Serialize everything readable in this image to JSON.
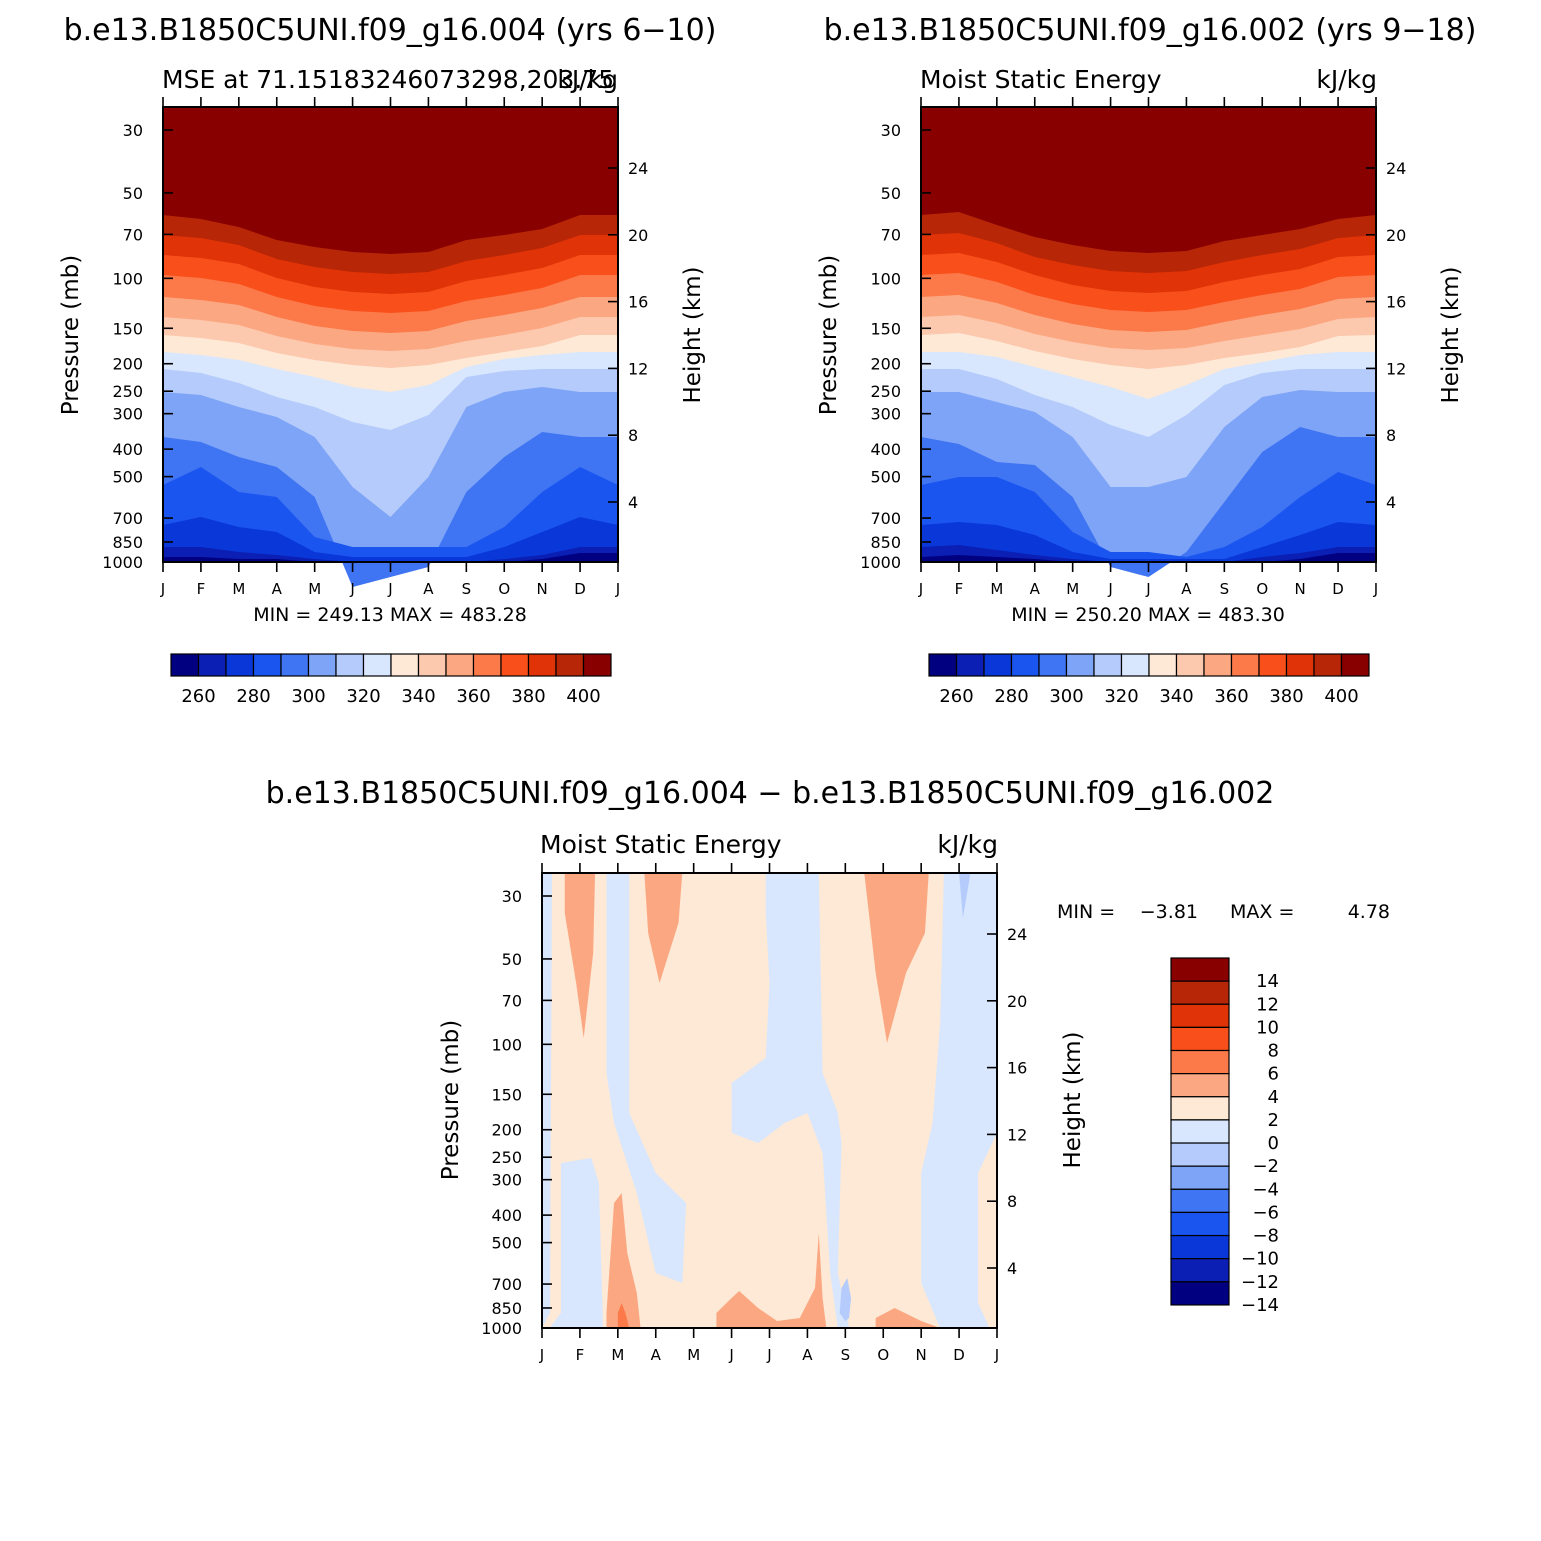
{
  "chart_data": [
    {
      "type": "contour",
      "panel": "top-left",
      "case_title": "b.e13.B1850C5UNI.f09_g16.004 (yrs 6−10)",
      "subtitle_left": "MSE at 71.15183246073298,203.75",
      "subtitle_right": "kJ/kg",
      "ylabel": "Pressure (mb)",
      "ylabel_right": "Height (km)",
      "pressure_ticks": [
        "30",
        "50",
        "70",
        "100",
        "150",
        "200",
        "250",
        "300",
        "400",
        "500",
        "700",
        "850",
        "1000"
      ],
      "height_ticks": [
        "24",
        "20",
        "16",
        "12",
        "8",
        "4"
      ],
      "months": [
        "J",
        "F",
        "M",
        "A",
        "M",
        "J",
        "J",
        "A",
        "S",
        "O",
        "N",
        "D",
        "J"
      ],
      "minmax": "MIN = 249.13 MAX = 483.28",
      "min": 249.13,
      "max": 483.28,
      "colorbar_labels": [
        "260",
        "280",
        "300",
        "320",
        "340",
        "360",
        "380",
        "400"
      ]
    },
    {
      "type": "contour",
      "panel": "top-right",
      "case_title": "b.e13.B1850C5UNI.f09_g16.002 (yrs 9−18)",
      "subtitle_left": "Moist Static Energy",
      "subtitle_right": "kJ/kg",
      "ylabel": "Pressure (mb)",
      "ylabel_right": "Height (km)",
      "pressure_ticks": [
        "30",
        "50",
        "70",
        "100",
        "150",
        "200",
        "250",
        "300",
        "400",
        "500",
        "700",
        "850",
        "1000"
      ],
      "height_ticks": [
        "24",
        "20",
        "16",
        "12",
        "8",
        "4"
      ],
      "months": [
        "J",
        "F",
        "M",
        "A",
        "M",
        "J",
        "J",
        "A",
        "S",
        "O",
        "N",
        "D",
        "J"
      ],
      "minmax": "MIN = 250.20 MAX = 483.30",
      "min": 250.2,
      "max": 483.3,
      "colorbar_labels": [
        "260",
        "280",
        "300",
        "320",
        "340",
        "360",
        "380",
        "400"
      ]
    },
    {
      "type": "contour",
      "panel": "bottom-difference",
      "case_title": "b.e13.B1850C5UNI.f09_g16.004 − b.e13.B1850C5UNI.f09_g16.002",
      "subtitle_left": "Moist Static Energy",
      "subtitle_right": "kJ/kg",
      "ylabel": "Pressure (mb)",
      "ylabel_right": "Height (km)",
      "pressure_ticks": [
        "30",
        "50",
        "70",
        "100",
        "150",
        "200",
        "250",
        "300",
        "400",
        "500",
        "700",
        "850",
        "1000"
      ],
      "height_ticks": [
        "24",
        "20",
        "16",
        "12",
        "8",
        "4"
      ],
      "months": [
        "J",
        "F",
        "M",
        "A",
        "M",
        "J",
        "J",
        "A",
        "S",
        "O",
        "N",
        "D",
        "J"
      ],
      "minmax_label_min": "MIN =",
      "minmax_value_min": "−3.81",
      "minmax_label_max": "MAX =",
      "minmax_value_max": "4.78",
      "min": -3.81,
      "max": 4.78,
      "colorbar_labels": [
        "14",
        "12",
        "10",
        "8",
        "6",
        "4",
        "2",
        "0",
        "−2",
        "−4",
        "−6",
        "−8",
        "−10",
        "−12",
        "−14"
      ]
    }
  ],
  "colors": {
    "mse_levels": [
      "#000080",
      "#0b1fb4",
      "#0a38d8",
      "#1b55f0",
      "#3f74f2",
      "#7ea4f7",
      "#b4cbfb",
      "#d8e7fd",
      "#fde9d6",
      "#fcc8ae",
      "#fba882",
      "#fc7a4a",
      "#f9501b",
      "#e03307",
      "#b62607",
      "#880000"
    ],
    "diff_levels": [
      "#880000",
      "#b62607",
      "#e03307",
      "#f9501b",
      "#fc7a4a",
      "#fba882",
      "#fde9d6",
      "#d8e7fd",
      "#b4cbfb",
      "#7ea4f7",
      "#3f74f2",
      "#1b55f0",
      "#0a38d8",
      "#0b1fb4",
      "#000080"
    ]
  }
}
